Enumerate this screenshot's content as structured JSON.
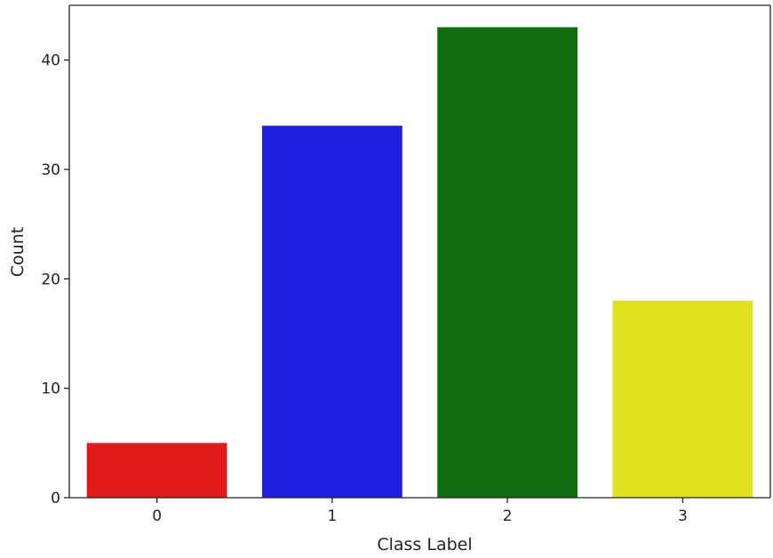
{
  "chart_data": {
    "type": "bar",
    "title": "",
    "xlabel": "Class Label",
    "ylabel": "Count",
    "categories": [
      "0",
      "1",
      "2",
      "3"
    ],
    "values": [
      5,
      34,
      43,
      18
    ],
    "colors": [
      "#e31a1c",
      "#1f1fe0",
      "#0f6e0f",
      "#e1e11e"
    ],
    "ylim": [
      0,
      45
    ],
    "yticks": [
      0,
      10,
      20,
      30,
      40
    ],
    "grid": false,
    "legend": "none"
  }
}
